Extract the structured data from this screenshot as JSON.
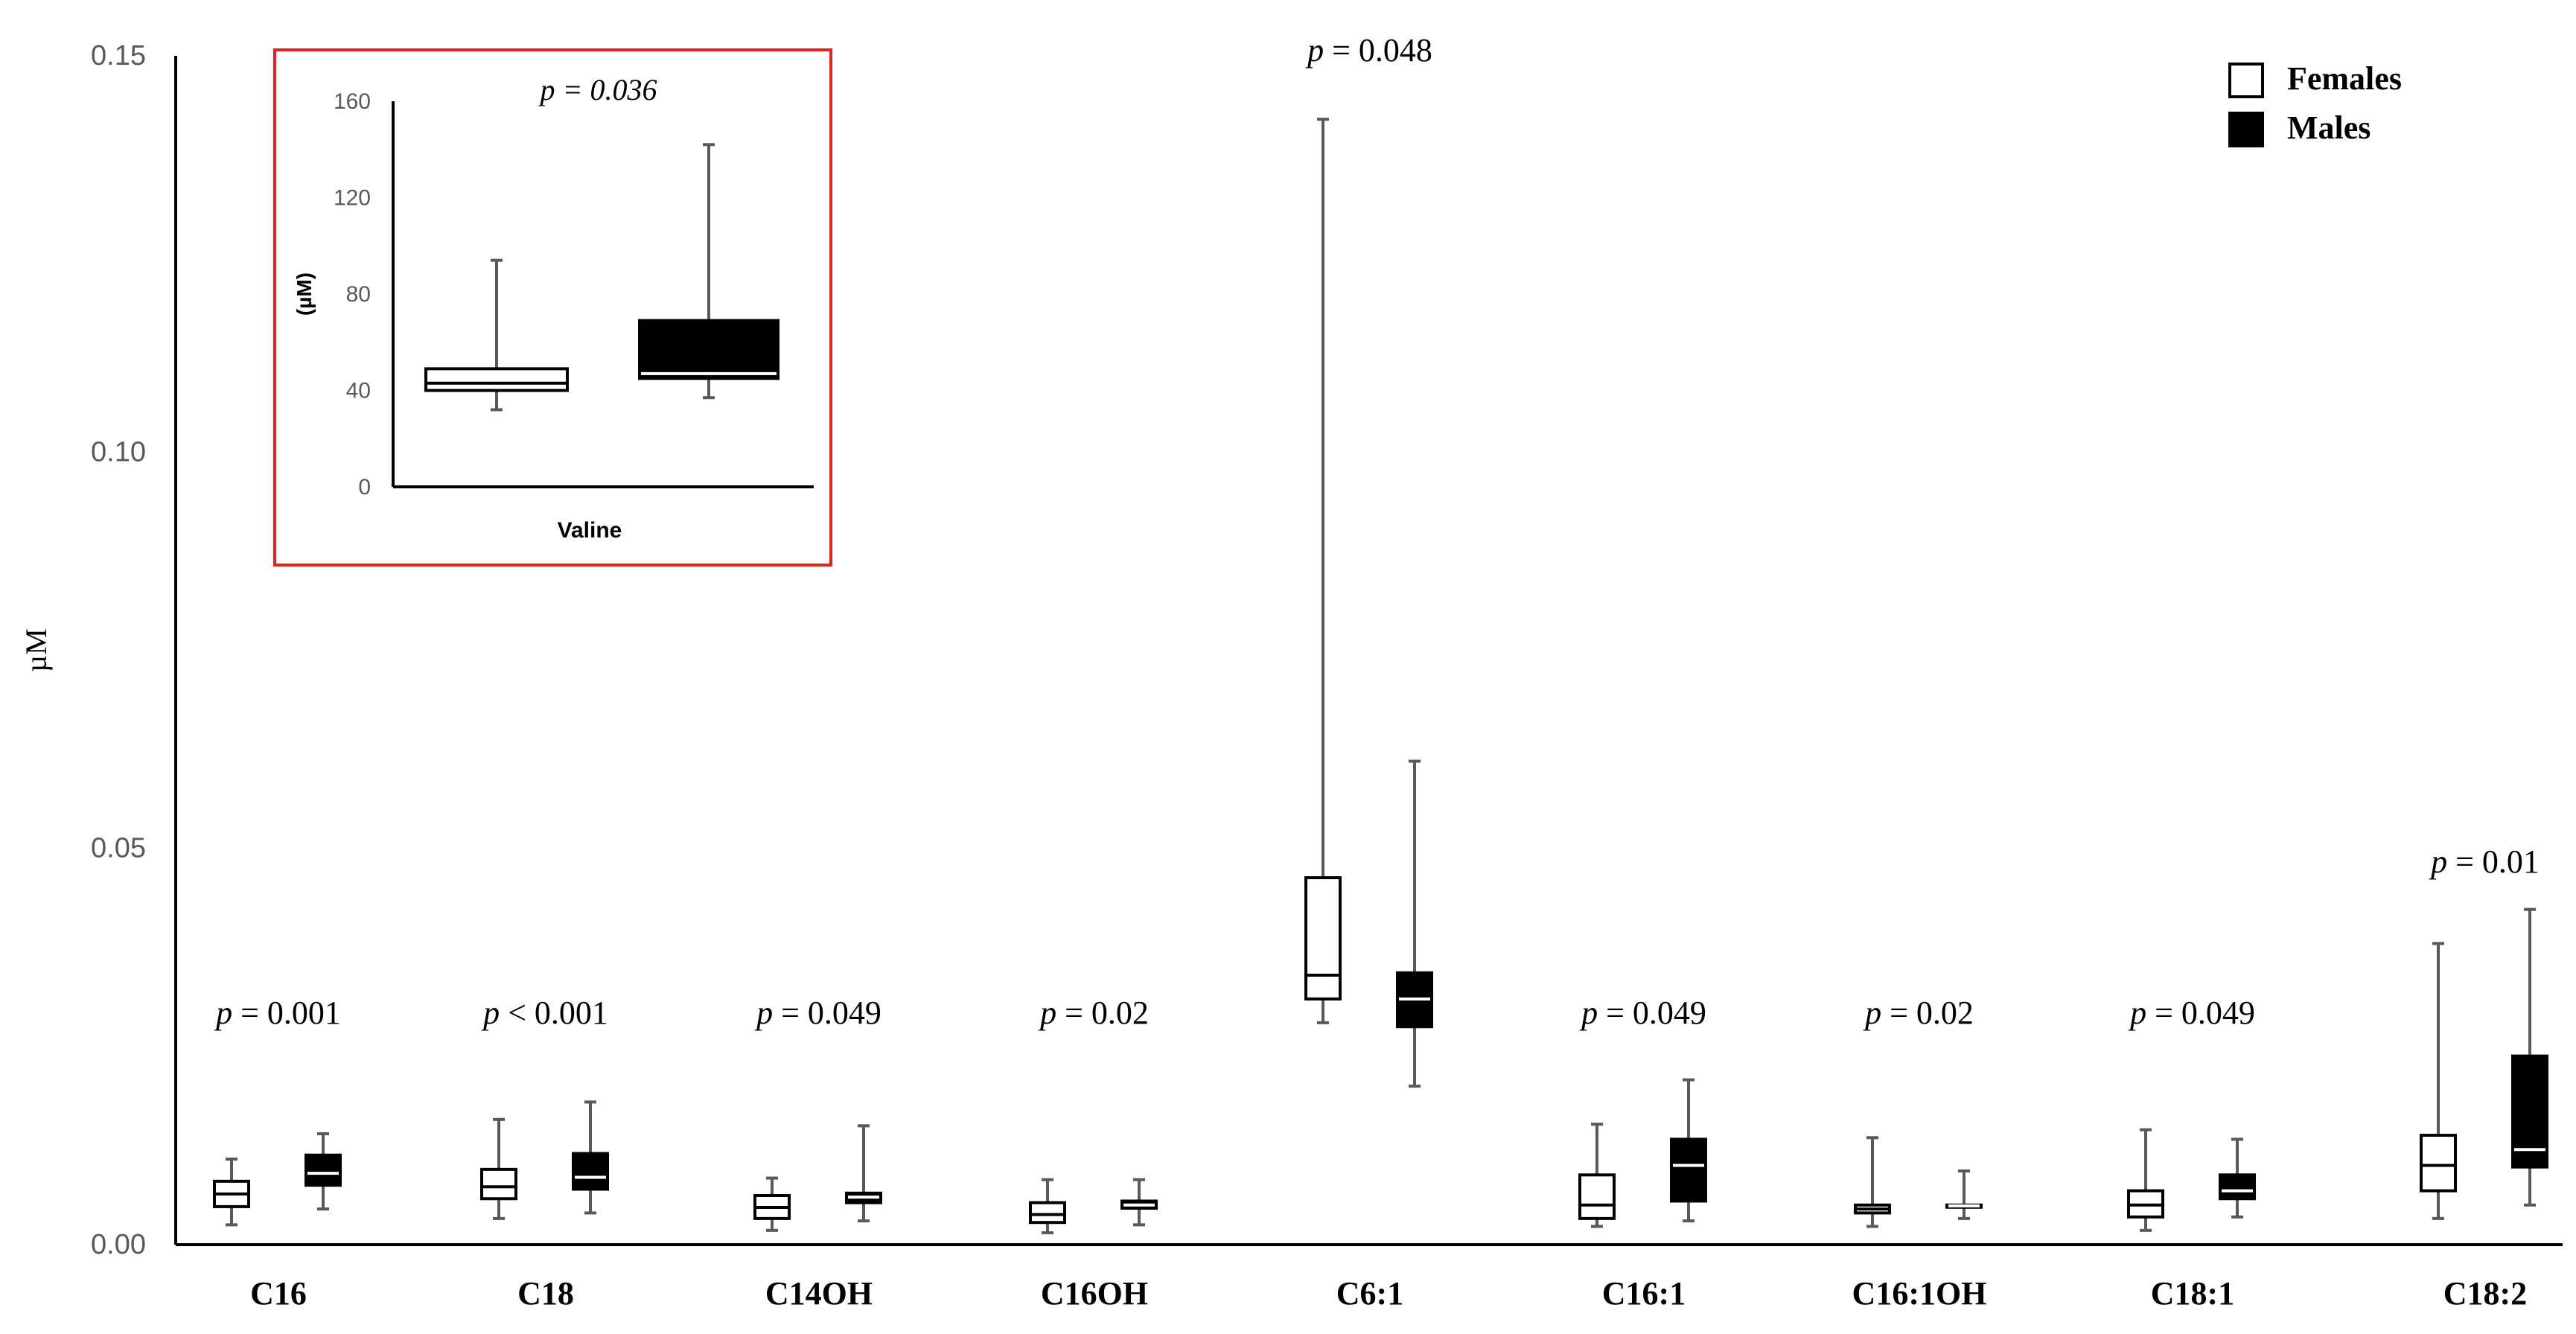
{
  "chart_data": [
    {
      "type": "box",
      "ylabel": "µM",
      "ylim": [
        0,
        0.15
      ],
      "yticks": [
        0.0,
        0.05,
        0.1,
        0.15
      ],
      "ytick_labels": [
        "0.00",
        "0.05",
        "0.10",
        "0.15"
      ],
      "grid": false,
      "legend_position": "top-right",
      "legend": [
        {
          "name": "Females",
          "fill": "#ffffff"
        },
        {
          "name": "Males",
          "fill": "#000000"
        }
      ],
      "categories": [
        "C16",
        "C18",
        "C14OH",
        "C16OH",
        "C6:1",
        "C16:1",
        "C16:1OH",
        "C18:1",
        "C18:2"
      ],
      "p_values": [
        {
          "prefix": "p",
          "text": " = 0.001"
        },
        {
          "prefix": "p",
          "text": " < 0.001"
        },
        {
          "prefix": "p",
          "text": " = 0.049"
        },
        {
          "prefix": "p",
          "text": " = 0.02"
        },
        {
          "prefix": "p",
          "text": " = 0.048"
        },
        {
          "prefix": "p",
          "text": " = 0.049"
        },
        {
          "prefix": "p",
          "text": " = 0.02"
        },
        {
          "prefix": "p",
          "text": " = 0.049"
        },
        {
          "prefix": "p",
          "text": " = 0.01"
        }
      ],
      "series": [
        {
          "name": "Females",
          "fill": "#ffffff",
          "boxes": [
            {
              "min": 0.0025,
              "q1": 0.0048,
              "median": 0.0064,
              "q3": 0.008,
              "max": 0.0108
            },
            {
              "min": 0.0033,
              "q1": 0.0058,
              "median": 0.0073,
              "q3": 0.0095,
              "max": 0.0158
            },
            {
              "min": 0.0018,
              "q1": 0.0033,
              "median": 0.0047,
              "q3": 0.0062,
              "max": 0.0084
            },
            {
              "min": 0.0015,
              "q1": 0.0028,
              "median": 0.0038,
              "q3": 0.0053,
              "max": 0.0082
            },
            {
              "min": 0.028,
              "q1": 0.031,
              "median": 0.034,
              "q3": 0.0463,
              "max": 0.142
            },
            {
              "min": 0.0023,
              "q1": 0.0033,
              "median": 0.005,
              "q3": 0.0088,
              "max": 0.0152
            },
            {
              "min": 0.0023,
              "q1": 0.004,
              "median": 0.0045,
              "q3": 0.005,
              "max": 0.0135
            },
            {
              "min": 0.0018,
              "q1": 0.0035,
              "median": 0.005,
              "q3": 0.0068,
              "max": 0.0145
            },
            {
              "min": 0.0033,
              "q1": 0.0068,
              "median": 0.01,
              "q3": 0.0138,
              "max": 0.038
            }
          ]
        },
        {
          "name": "Males",
          "fill": "#000000",
          "boxes": [
            {
              "min": 0.0045,
              "q1": 0.0075,
              "median": 0.009,
              "q3": 0.0113,
              "max": 0.014
            },
            {
              "min": 0.004,
              "q1": 0.007,
              "median": 0.0085,
              "q3": 0.0115,
              "max": 0.018
            },
            {
              "min": 0.003,
              "q1": 0.0053,
              "median": 0.006,
              "q3": 0.0065,
              "max": 0.015
            },
            {
              "min": 0.0025,
              "q1": 0.0046,
              "median": 0.005,
              "q3": 0.0055,
              "max": 0.0082
            },
            {
              "min": 0.02,
              "q1": 0.0275,
              "median": 0.031,
              "q3": 0.0343,
              "max": 0.061
            },
            {
              "min": 0.003,
              "q1": 0.0055,
              "median": 0.01,
              "q3": 0.0133,
              "max": 0.0208
            },
            {
              "min": 0.0033,
              "q1": 0.0048,
              "median": 0.0049,
              "q3": 0.005,
              "max": 0.0093
            },
            {
              "min": 0.0035,
              "q1": 0.0058,
              "median": 0.0068,
              "q3": 0.0088,
              "max": 0.0133
            },
            {
              "min": 0.005,
              "q1": 0.0098,
              "median": 0.012,
              "q3": 0.0238,
              "max": 0.0423
            }
          ]
        }
      ]
    },
    {
      "type": "box",
      "inset": true,
      "xlabel": "Valine",
      "ylabel": "(µM)",
      "ylim": [
        0,
        160
      ],
      "yticks": [
        0,
        40,
        80,
        120,
        160
      ],
      "ytick_labels": [
        "0",
        "40",
        "80",
        "120",
        "160"
      ],
      "p_value": {
        "prefix": "p",
        "text": " = 0.036"
      },
      "border_color": "#e8211e",
      "series": [
        {
          "name": "Females",
          "fill": "#ffffff",
          "box": {
            "min": 32,
            "q1": 40,
            "median": 43,
            "q3": 49,
            "max": 94
          }
        },
        {
          "name": "Males",
          "fill": "#000000",
          "box": {
            "min": 37,
            "q1": 45,
            "median": 47,
            "q3": 69,
            "max": 142
          }
        }
      ]
    }
  ]
}
